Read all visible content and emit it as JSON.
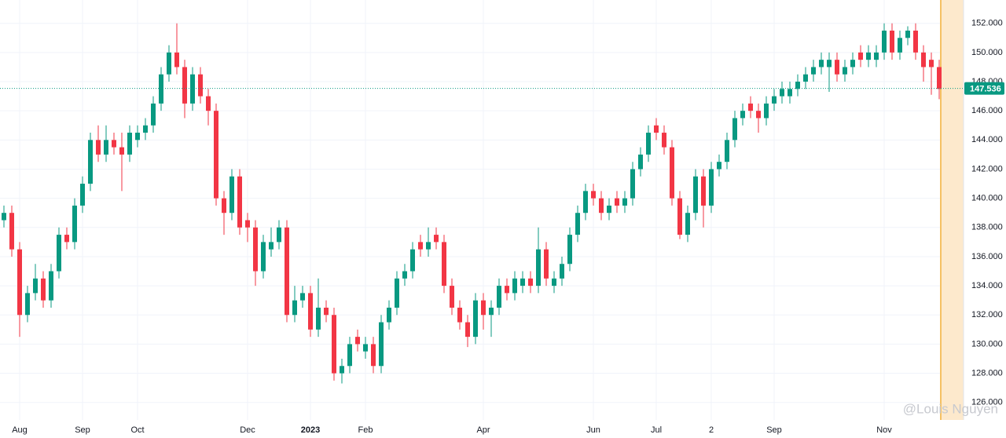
{
  "chart_data": {
    "type": "candlestick",
    "categories": [
      null,
      null,
      "Aug",
      null,
      null,
      null,
      null,
      null,
      null,
      null,
      "Sep",
      null,
      null,
      null,
      null,
      null,
      null,
      "Oct",
      null,
      null,
      null,
      null,
      null,
      null,
      null,
      null,
      null,
      null,
      null,
      null,
      null,
      "Dec",
      null,
      null,
      null,
      null,
      null,
      null,
      null,
      "2023",
      null,
      null,
      null,
      null,
      null,
      null,
      "Feb",
      null,
      null,
      null,
      null,
      null,
      null,
      null,
      null,
      null,
      null,
      null,
      null,
      null,
      null,
      "Apr",
      null,
      null,
      null,
      null,
      null,
      null,
      null,
      null,
      null,
      null,
      null,
      null,
      null,
      "Jun",
      null,
      null,
      null,
      null,
      null,
      null,
      null,
      "Jul",
      null,
      null,
      null,
      null,
      null,
      null,
      "2",
      null,
      null,
      null,
      null,
      null,
      null,
      null,
      "Sep",
      null,
      null,
      null,
      null,
      null,
      null,
      null,
      null,
      null,
      null,
      null,
      null,
      null,
      "Nov",
      null,
      null,
      null,
      null,
      null,
      null,
      null
    ],
    "open": [
      138.5,
      139,
      136.5,
      132,
      133.5,
      134.5,
      133,
      135,
      137.5,
      137,
      139.5,
      141,
      144,
      143,
      144,
      143.5,
      143,
      144,
      144.5,
      145,
      146.5,
      148.5,
      150,
      149,
      146.5,
      148.5,
      147,
      146,
      140,
      139,
      141.5,
      138.5,
      138,
      135,
      136.5,
      137,
      138,
      132,
      133,
      133.5,
      131,
      132.5,
      132,
      128,
      128.5,
      130.5,
      129.5,
      130,
      128.5,
      131.5,
      132.5,
      134.5,
      135,
      137,
      136.5,
      137.5,
      137,
      134,
      132.5,
      131.5,
      130.5,
      133,
      132,
      132.5,
      134,
      133.5,
      134,
      134.5,
      134,
      136.5,
      134,
      134.5,
      135.5,
      137.5,
      139,
      140.5,
      140,
      139,
      140,
      139.5,
      140,
      142,
      143,
      145,
      144.5,
      143.5,
      140,
      137.5,
      139,
      141.5,
      139.5,
      142,
      142.5,
      144,
      145.5,
      146.5,
      146,
      145.5,
      146.5,
      147,
      147,
      147.5,
      148,
      148.5,
      149,
      149,
      149.5,
      148.5,
      149,
      150,
      149.5,
      149.5,
      150,
      151.5,
      150,
      151,
      151.5,
      150,
      149.5,
      149
    ],
    "high": [
      139.5,
      139.5,
      137,
      134,
      135.5,
      135,
      135.5,
      138,
      138,
      140,
      141.5,
      144.5,
      145,
      145,
      144.5,
      144.5,
      145,
      145,
      145.5,
      147,
      149,
      150.5,
      152,
      149.5,
      149,
      149,
      147.5,
      146.5,
      140.5,
      142,
      142,
      139,
      138.5,
      137.5,
      138,
      138.5,
      138.5,
      134,
      134,
      134,
      134.5,
      133,
      132.5,
      129,
      130.5,
      131,
      130.5,
      130.5,
      132,
      133,
      135,
      135.5,
      137,
      137.5,
      138,
      138,
      137.5,
      134.5,
      133,
      132,
      133.5,
      133.5,
      133,
      134.5,
      134.5,
      135,
      135,
      135,
      138,
      137,
      135,
      136,
      138,
      139.5,
      141,
      141,
      140.5,
      140,
      140.5,
      140.5,
      142.5,
      143.5,
      145,
      145.5,
      145,
      144,
      140.5,
      139.5,
      142,
      142,
      142.5,
      143,
      144.5,
      146,
      146.5,
      147,
      146.5,
      147,
      147.5,
      148,
      148,
      148.5,
      149,
      149.5,
      150,
      150,
      150,
      149.5,
      150,
      150.5,
      150.5,
      150.5,
      152,
      152,
      151.5,
      151.8,
      152,
      150.5,
      150,
      149.5
    ],
    "low": [
      138,
      136,
      130.5,
      131.5,
      133,
      132.5,
      132.5,
      134.5,
      136.5,
      136.5,
      139,
      140.5,
      142.5,
      142.5,
      143,
      140.5,
      142.5,
      143.5,
      144,
      144.5,
      146,
      148,
      148.5,
      145.5,
      146,
      146.5,
      145,
      139.5,
      137.5,
      138.5,
      137.5,
      137,
      134,
      134.5,
      136,
      136.5,
      131.5,
      131.5,
      132.5,
      130.5,
      130.5,
      131.5,
      127.5,
      127.3,
      128,
      129.5,
      129,
      128,
      128,
      131,
      132,
      134,
      134.5,
      136,
      136,
      136.5,
      133.5,
      132,
      131,
      129.8,
      130,
      131,
      130.5,
      132,
      133,
      133,
      133.5,
      133.5,
      133.5,
      134,
      133.5,
      134,
      135,
      137,
      138.5,
      139.5,
      138.5,
      138.5,
      139,
      139,
      139.5,
      141.5,
      142.5,
      144,
      143,
      139.5,
      137.2,
      137,
      138.5,
      138,
      139,
      141.5,
      142,
      143.5,
      145,
      145.5,
      144.5,
      145,
      146,
      146.5,
      146.5,
      147,
      147.5,
      148,
      148.5,
      147.3,
      148,
      148,
      148.5,
      149,
      149,
      149,
      149.5,
      149.5,
      149.5,
      150.5,
      149.5,
      148,
      147.1,
      146.8
    ],
    "close": [
      139,
      136.5,
      132,
      133.5,
      134.5,
      133,
      135,
      137.5,
      137,
      139.5,
      141,
      144,
      143,
      144,
      143.5,
      143,
      144.5,
      144.5,
      145,
      146.5,
      148.5,
      150,
      149,
      146.5,
      148.5,
      147,
      146,
      140,
      139,
      141.5,
      138,
      138,
      135,
      137,
      137,
      138,
      132,
      133,
      133.5,
      131,
      132.5,
      132,
      128,
      128.5,
      130,
      130,
      130,
      128.5,
      131.5,
      132.5,
      134.5,
      135,
      136.5,
      136.5,
      137,
      137,
      134,
      132.5,
      131.5,
      130.5,
      133,
      132,
      132.5,
      134,
      133.5,
      134.5,
      134.5,
      134,
      136.5,
      134.5,
      134.5,
      135.5,
      137.5,
      139,
      140.5,
      140,
      139,
      139.5,
      139.5,
      140,
      142,
      143,
      144.5,
      144.5,
      143.5,
      140,
      137.5,
      139,
      141.5,
      139.5,
      142,
      142.5,
      144,
      145.5,
      146,
      146,
      145.5,
      146.5,
      147,
      147.5,
      147.5,
      148,
      148.5,
      149,
      149.5,
      149.5,
      148.5,
      149,
      149.5,
      149.5,
      150,
      150,
      151.5,
      150,
      151,
      151.5,
      150,
      149,
      149,
      147.5
    ],
    "ylim": [
      124.8,
      153.6
    ],
    "yticks": [
      {
        "value": 126,
        "label": "126.000"
      },
      {
        "value": 128,
        "label": "128.000"
      },
      {
        "value": 130,
        "label": "130.000"
      },
      {
        "value": 132,
        "label": "132.000"
      },
      {
        "value": 134,
        "label": "134.000"
      },
      {
        "value": 136,
        "label": "136.000"
      },
      {
        "value": 138,
        "label": "138.000"
      },
      {
        "value": 140,
        "label": "140.000"
      },
      {
        "value": 142,
        "label": "142.000"
      },
      {
        "value": 144,
        "label": "144.000"
      },
      {
        "value": 146,
        "label": "146.000"
      },
      {
        "value": 148,
        "label": "148.000"
      },
      {
        "value": 150,
        "label": "150.000"
      },
      {
        "value": 152,
        "label": "152.000"
      }
    ],
    "last_price": 147.536,
    "up_color": "#089981",
    "down_color": "#f23645",
    "grid": true,
    "watermark": "@Louis Nguyen"
  }
}
